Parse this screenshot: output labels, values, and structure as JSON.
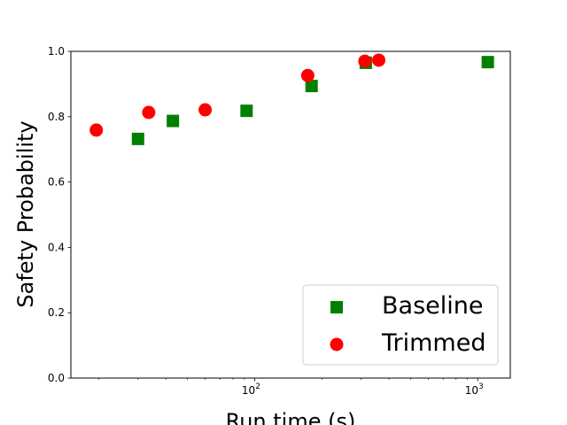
{
  "chart_data": {
    "type": "scatter",
    "xlabel": "Run time (s)",
    "ylabel": "Safety Probability",
    "xscale": "log",
    "xlim": [
      15,
      1400
    ],
    "ylim": [
      0,
      1
    ],
    "yticks": [
      "0.0",
      "0.2",
      "0.4",
      "0.6",
      "0.8",
      "1.0"
    ],
    "xticks": [
      {
        "base": "10",
        "exp": "2",
        "value": 100
      },
      {
        "base": "10",
        "exp": "3",
        "value": 1000
      }
    ],
    "legend_position": "lower-right",
    "series": [
      {
        "name": "Baseline",
        "marker": "square",
        "color": "#008000",
        "x": [
          30,
          43,
          92,
          180,
          315,
          1110
        ],
        "y": [
          0.732,
          0.787,
          0.818,
          0.894,
          0.965,
          0.967
        ]
      },
      {
        "name": "Trimmed",
        "marker": "circle",
        "color": "#ff0000",
        "x": [
          19.5,
          33.5,
          60,
          173,
          312,
          360
        ],
        "y": [
          0.759,
          0.813,
          0.821,
          0.926,
          0.97,
          0.973
        ]
      }
    ]
  }
}
